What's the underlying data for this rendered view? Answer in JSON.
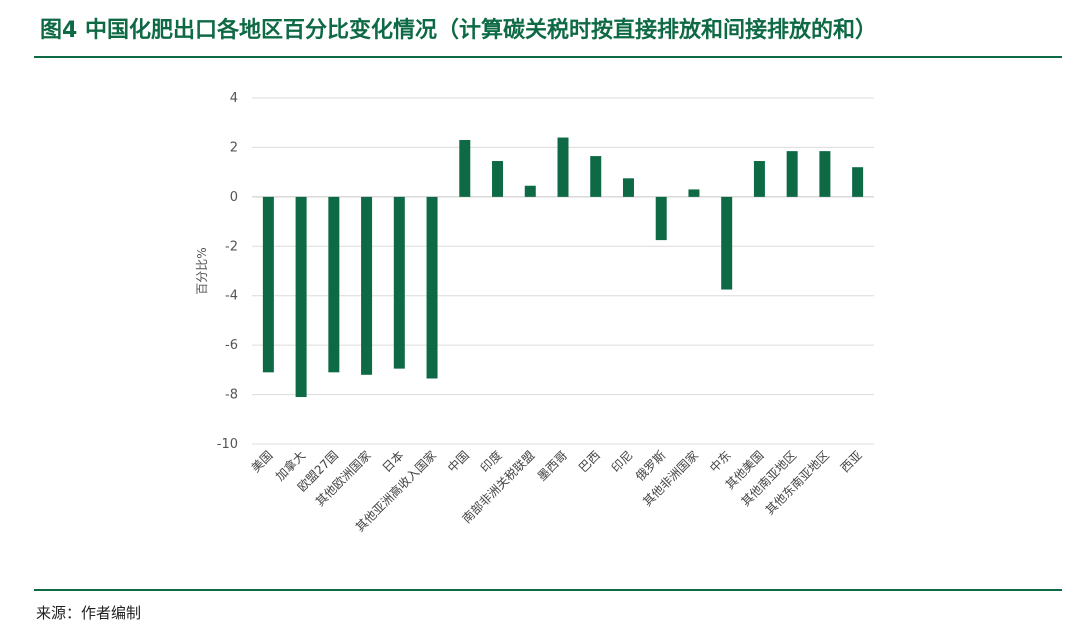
{
  "header": {
    "title": "图4 中国化肥出口各地区百分比变化情况（计算碳关税时按直接排放和间接排放的和）"
  },
  "footer": {
    "source": "来源：作者编制"
  },
  "chart_data": {
    "type": "bar",
    "ylabel": "百分比%",
    "xlabel": "",
    "ylim": [
      -10,
      4
    ],
    "yticks": [
      4,
      2,
      0,
      -2,
      -4,
      -6,
      -8,
      -10
    ],
    "grid": true,
    "bar_color": "#0e6a44",
    "categories": [
      "美国",
      "加拿大",
      "欧盟27国",
      "其他欧洲国家",
      "日本",
      "其他亚洲高收入国家",
      "中国",
      "印度",
      "南部非洲关税联盟",
      "墨西哥",
      "巴西",
      "印尼",
      "俄罗斯",
      "其他非洲国家",
      "中东",
      "其他美国",
      "其他南亚地区",
      "其他东南亚地区",
      "西亚"
    ],
    "values": [
      -7.1,
      -8.1,
      -7.1,
      -7.2,
      -6.95,
      -7.35,
      2.3,
      1.45,
      0.45,
      2.4,
      1.65,
      0.75,
      -1.75,
      0.3,
      -3.75,
      1.45,
      1.85,
      1.85,
      1.2
    ]
  }
}
